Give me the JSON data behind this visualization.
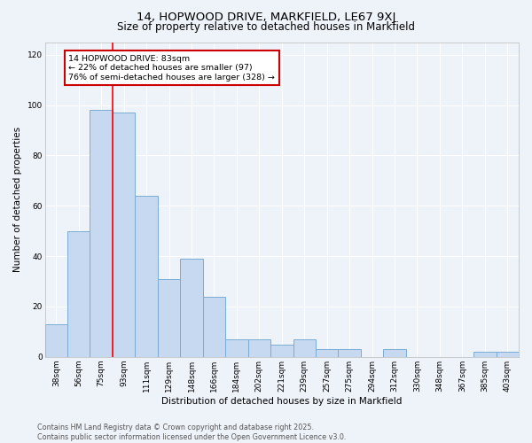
{
  "title1": "14, HOPWOOD DRIVE, MARKFIELD, LE67 9XJ",
  "title2": "Size of property relative to detached houses in Markfield",
  "xlabel": "Distribution of detached houses by size in Markfield",
  "ylabel": "Number of detached properties",
  "bar_labels": [
    "38sqm",
    "56sqm",
    "75sqm",
    "93sqm",
    "111sqm",
    "129sqm",
    "148sqm",
    "166sqm",
    "184sqm",
    "202sqm",
    "221sqm",
    "239sqm",
    "257sqm",
    "275sqm",
    "294sqm",
    "312sqm",
    "330sqm",
    "348sqm",
    "367sqm",
    "385sqm",
    "403sqm"
  ],
  "bar_values": [
    13,
    50,
    98,
    97,
    64,
    31,
    39,
    24,
    7,
    7,
    5,
    7,
    3,
    3,
    0,
    3,
    0,
    0,
    0,
    2,
    2
  ],
  "bar_color": "#c6d9f0",
  "bar_edgecolor": "#7aadd4",
  "bar_linewidth": 0.7,
  "red_line_x": 2.5,
  "annotation_text": "14 HOPWOOD DRIVE: 83sqm\n← 22% of detached houses are smaller (97)\n76% of semi-detached houses are larger (328) →",
  "annotation_box_color": "#ffffff",
  "annotation_box_edgecolor": "#cc0000",
  "ylim": [
    0,
    125
  ],
  "yticks": [
    0,
    20,
    40,
    60,
    80,
    100,
    120
  ],
  "footer": "Contains HM Land Registry data © Crown copyright and database right 2025.\nContains public sector information licensed under the Open Government Licence v3.0.",
  "bg_color": "#eef2f9",
  "grid_color": "#ffffff",
  "title_fontsize": 9.5,
  "subtitle_fontsize": 8.5,
  "tick_fontsize": 6.5,
  "ylabel_fontsize": 7.5,
  "xlabel_fontsize": 7.5,
  "footer_fontsize": 5.8,
  "annotation_fontsize": 6.8
}
